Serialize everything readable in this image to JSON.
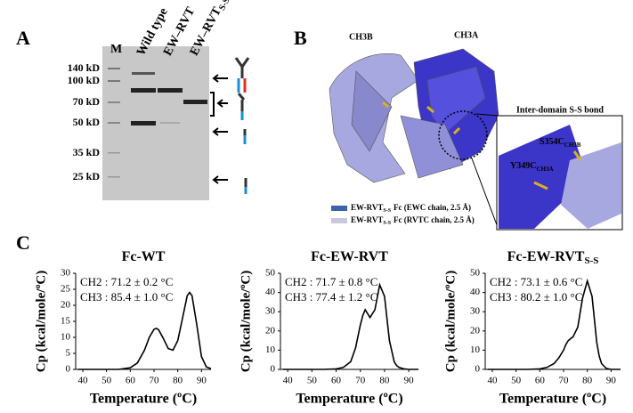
{
  "panel_a": {
    "label": "A",
    "lanes": [
      "M",
      "Wild type",
      "EW–RVT",
      "EW–RVT"
    ],
    "lane_sub": "S-S",
    "markers": [
      "140 kD",
      "100 kD",
      "70 kD",
      "50 kD",
      "35 kD",
      "25 kD"
    ]
  },
  "panel_b": {
    "label": "B",
    "chains": [
      "CH3B",
      "CH3A"
    ],
    "inset_title": "Inter-domain S-S bond",
    "residues": [
      {
        "name": "S354C",
        "sub": "CH3B"
      },
      {
        "name": "Y349C",
        "sub": "CH3A"
      }
    ],
    "legend": [
      {
        "name": "EW-RVT",
        "sub": "S-S",
        "desc": "Fc (EWC chain, 2.5 Å)",
        "color": "#3d63a8"
      },
      {
        "name": "EW-RVT",
        "sub": "S-S",
        "desc": "Fc (RVTC chain, 2.5 Å)",
        "color": "#c9c9dc"
      }
    ]
  },
  "panel_c": {
    "label": "C"
  },
  "chart_data": [
    {
      "type": "line",
      "title": "Fc-WT",
      "xlabel": "Temperature (ºC)",
      "ylabel": "Cp (kcal/mole/ºC)",
      "annotations": [
        "CH2 : 71.2 ± 0.2 °C",
        "CH3 : 85.4 ± 1.0 °C"
      ],
      "color": "#000000",
      "x": [
        38,
        45,
        50,
        55,
        60,
        63,
        66,
        68,
        70,
        71,
        72,
        74,
        76,
        78,
        80,
        82,
        84,
        85,
        86,
        88,
        90,
        92,
        94
      ],
      "values": [
        0,
        0,
        0,
        0,
        0.5,
        2,
        6,
        10,
        12.5,
        12.8,
        12.3,
        9.5,
        6.5,
        6,
        9,
        16,
        23,
        24,
        23,
        14,
        4,
        0.8,
        0.2
      ],
      "xlim": [
        37,
        94
      ],
      "xticks": [
        40,
        50,
        60,
        70,
        80,
        90
      ],
      "ylim": [
        0,
        30
      ],
      "yticks": [
        0,
        5,
        10,
        15,
        20,
        25,
        30
      ]
    },
    {
      "type": "line",
      "title": "Fc-EW-RVT",
      "xlabel": "Temperature (ºC)",
      "ylabel": "Cp (kcal/mole/ºC)",
      "annotations": [
        "CH2 : 71.7 ± 0.8 °C",
        "CH3 : 77.4 ± 1.2 °C"
      ],
      "color": "#000000",
      "x": [
        38,
        45,
        50,
        55,
        60,
        63,
        66,
        68,
        70,
        71,
        72,
        74,
        76,
        78,
        80,
        82,
        84,
        85,
        86,
        88,
        90,
        92,
        94
      ],
      "values": [
        0,
        0,
        0,
        0,
        0.3,
        1,
        4,
        11,
        23,
        28,
        31,
        27,
        31,
        44,
        38,
        15,
        4,
        2,
        1,
        0.3,
        0,
        0,
        0
      ],
      "xlim": [
        37,
        94
      ],
      "xticks": [
        40,
        50,
        60,
        70,
        80,
        90
      ],
      "ylim": [
        0,
        50
      ],
      "yticks": [
        0,
        10,
        20,
        30,
        40,
        50
      ]
    },
    {
      "type": "line",
      "title": "Fc-EW-RVT",
      "title_sub": "S-S",
      "xlabel": "Temperature (ºC)",
      "ylabel": "Cp (kcal/mole/ºC)",
      "annotations": [
        "CH2 : 73.1 ± 0.6 °C",
        "CH3 : 80.2 ± 1.0 °C"
      ],
      "color": "#000000",
      "x": [
        38,
        45,
        50,
        55,
        60,
        63,
        66,
        68,
        70,
        71,
        72,
        74,
        76,
        78,
        80,
        82,
        84,
        85,
        86,
        88,
        90,
        92,
        94
      ],
      "values": [
        0,
        0,
        0,
        0,
        0.3,
        1,
        3,
        6,
        10,
        13,
        15,
        17,
        22,
        37,
        46,
        38,
        14,
        7,
        3,
        0.5,
        0,
        0,
        0
      ],
      "xlim": [
        37,
        94
      ],
      "xticks": [
        40,
        50,
        60,
        70,
        80,
        90
      ],
      "ylim": [
        0,
        50
      ],
      "yticks": [
        0,
        10,
        20,
        30,
        40,
        50
      ]
    }
  ]
}
